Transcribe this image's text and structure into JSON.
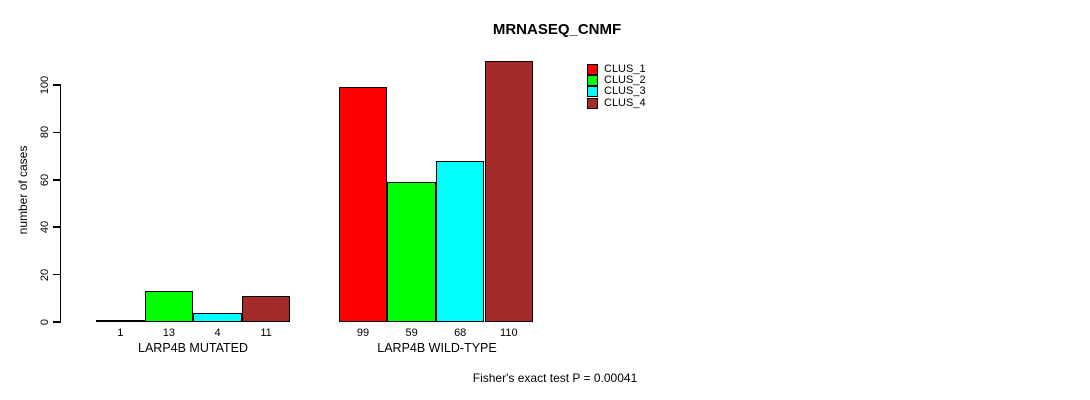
{
  "chart_data": {
    "type": "bar",
    "title": "MRNASEQ_CNMF",
    "ylabel": "number of cases",
    "xlabel": "",
    "ylim": [
      0,
      110
    ],
    "yticks": [
      0,
      20,
      40,
      60,
      80,
      100
    ],
    "categories": [
      "LARP4B MUTATED",
      "LARP4B WILD-TYPE"
    ],
    "series": [
      {
        "name": "CLUS_1",
        "color": "#FF0000",
        "values": [
          1,
          99
        ]
      },
      {
        "name": "CLUS_2",
        "color": "#00FF00",
        "values": [
          13,
          59
        ]
      },
      {
        "name": "CLUS_3",
        "color": "#00FFFF",
        "values": [
          4,
          68
        ]
      },
      {
        "name": "CLUS_4",
        "color": "#A52A2A",
        "values": [
          11,
          110
        ]
      }
    ],
    "bar_value_labels": [
      [
        "1",
        "13",
        "4",
        "11"
      ],
      [
        "99",
        "59",
        "68",
        "110"
      ]
    ],
    "legend_position": "top-right",
    "grid": false,
    "annotation": "Fisher's exact test P = 0.00041"
  }
}
